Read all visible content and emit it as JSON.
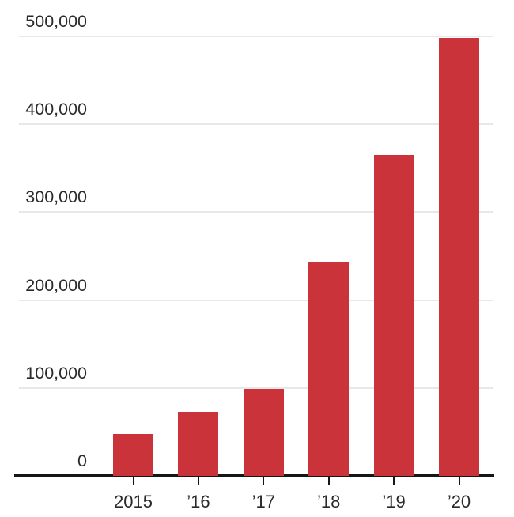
{
  "chart_data": {
    "type": "bar",
    "title": "",
    "xlabel": "",
    "ylabel": "",
    "categories": [
      "2015",
      "’16",
      "’17",
      "’18",
      "’19",
      "’20"
    ],
    "values": [
      48000,
      73000,
      99000,
      243000,
      365000,
      498000
    ],
    "ylim": [
      0,
      500000
    ],
    "ytick_interval": 100000,
    "ytick_values": [
      0,
      100000,
      200000,
      300000,
      400000,
      500000
    ],
    "ytick_labels": [
      "0",
      "100,000",
      "200,000",
      "300,000",
      "400,000",
      "500,000"
    ],
    "grid": true,
    "legend": false,
    "colors": {
      "bar": "#cb333b",
      "gridline": "#e8e8e8",
      "axis": "#161616",
      "text": "#2a2a2a",
      "background": "#ffffff"
    }
  }
}
